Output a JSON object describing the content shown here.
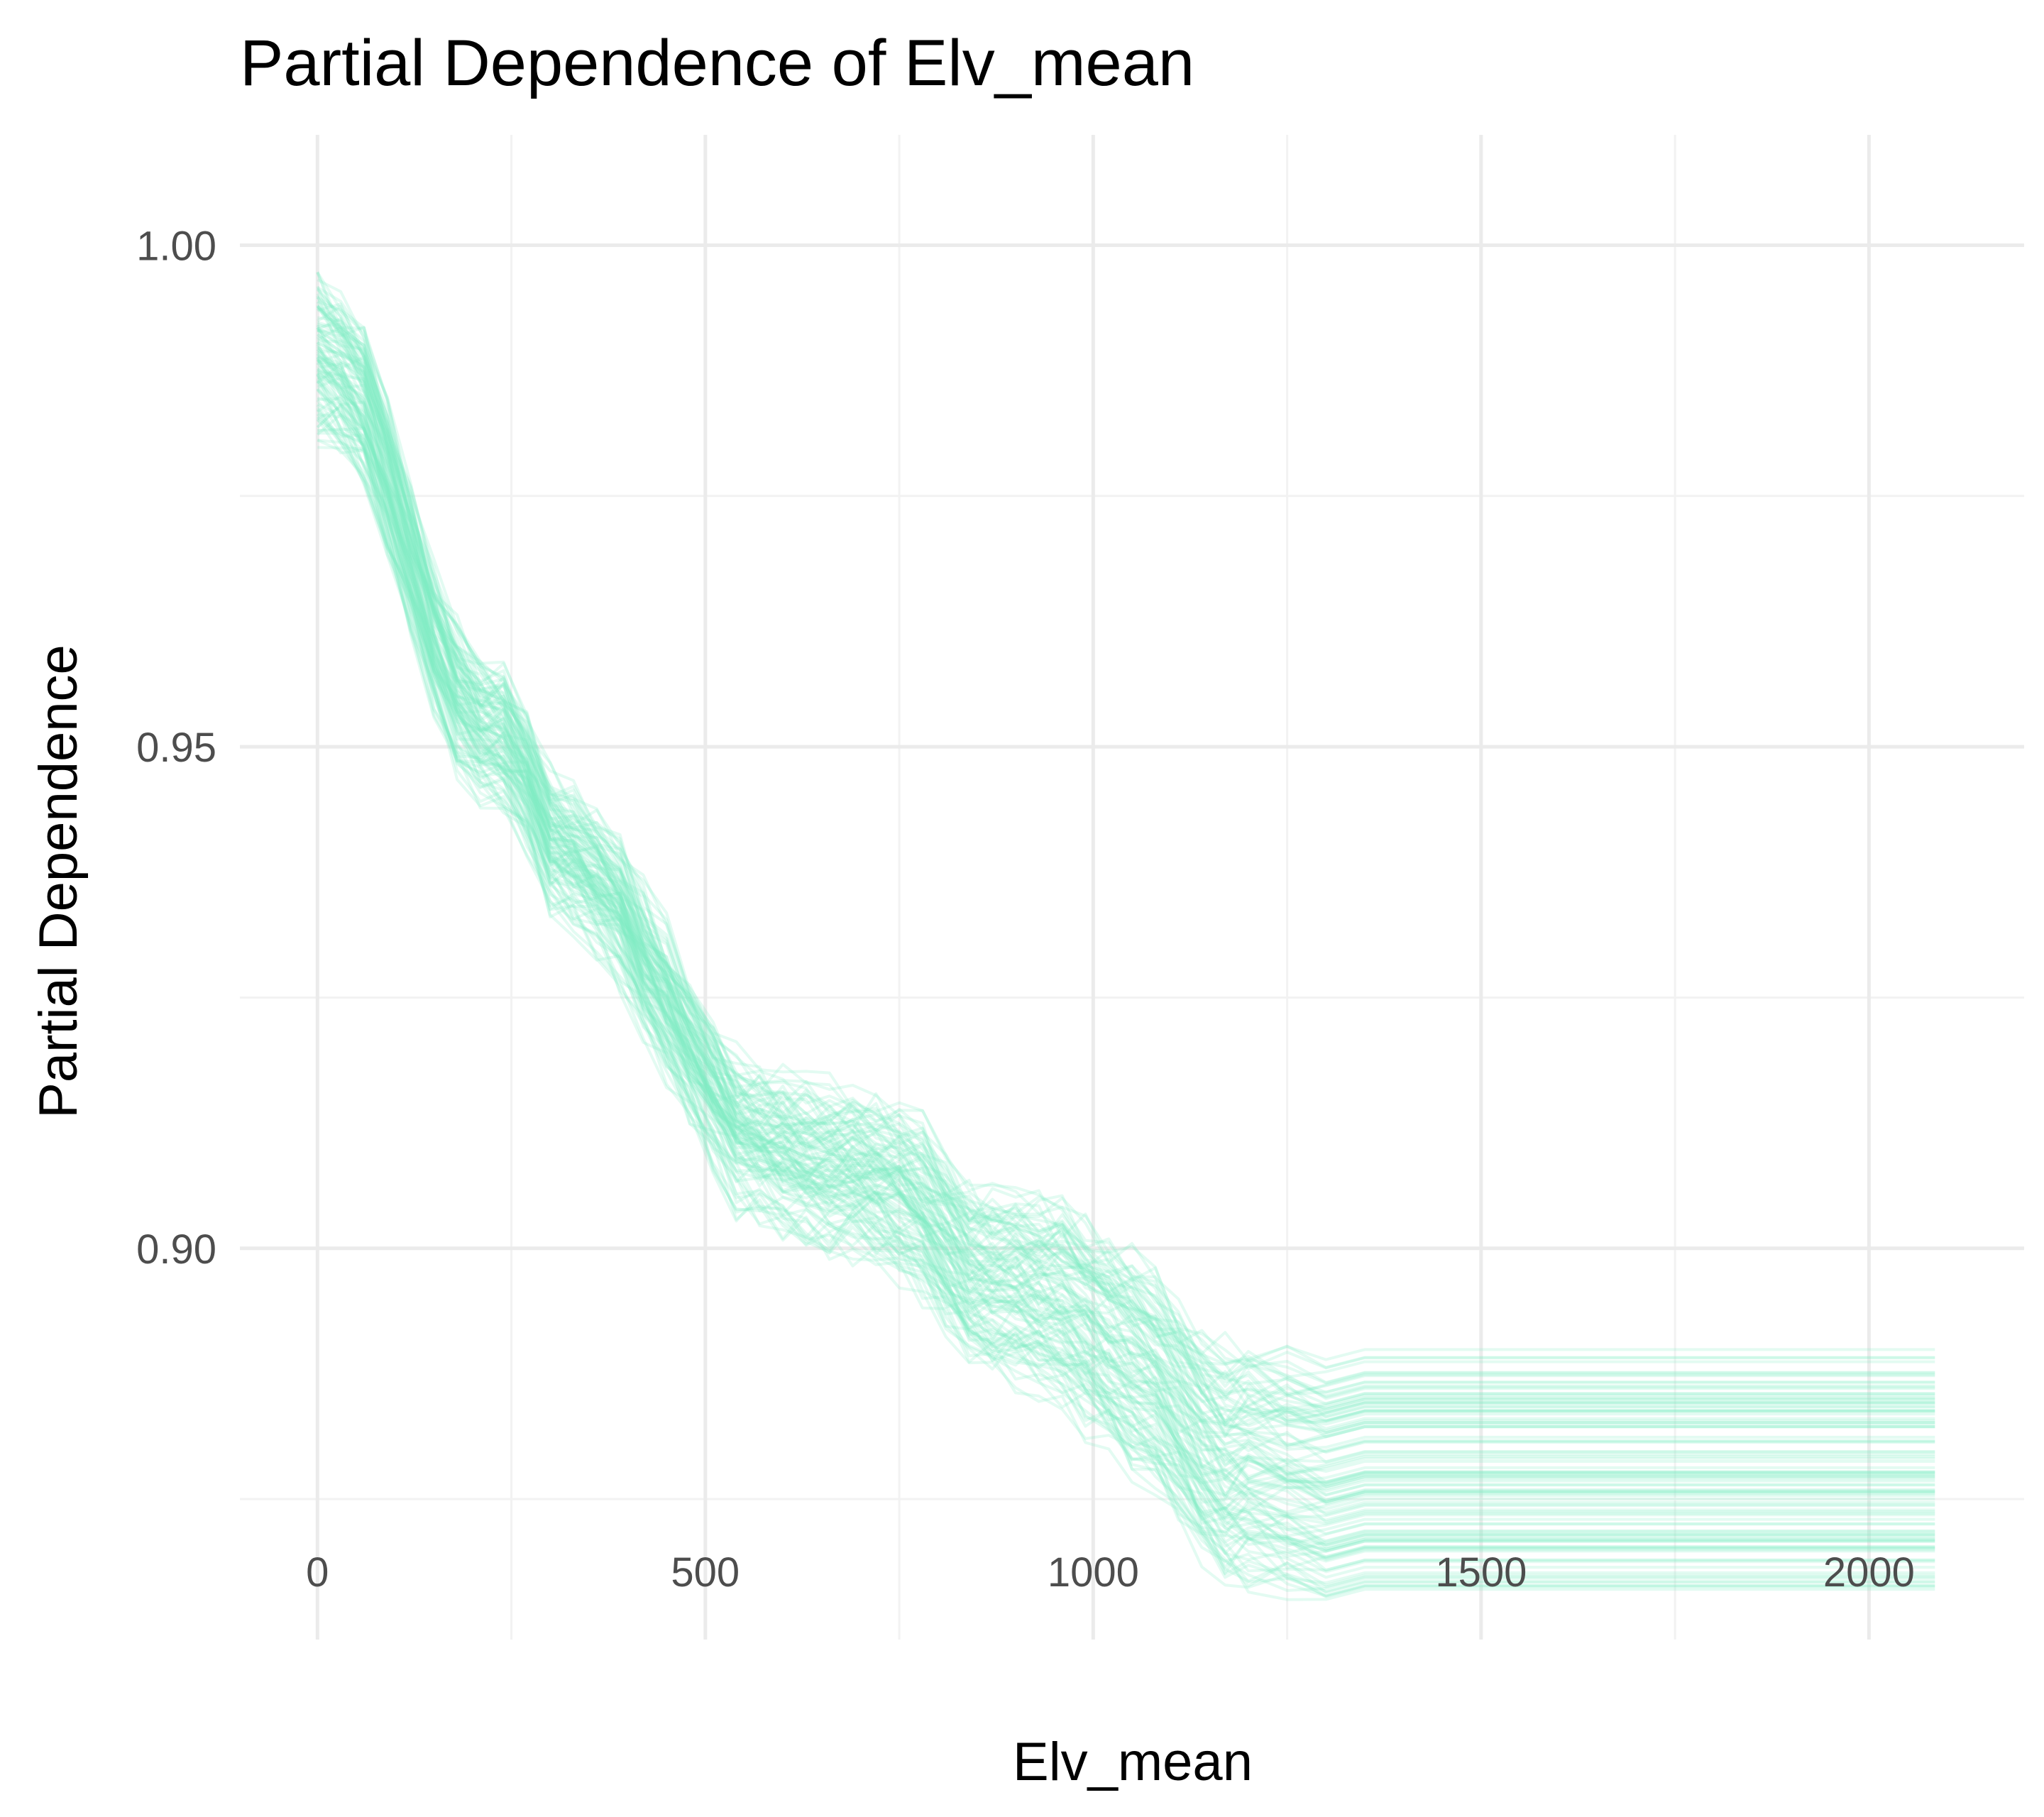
{
  "colors": {
    "background": "#ffffff",
    "grid_major": "#ebebeb",
    "grid_minor": "#f2f2f2",
    "line": "#7fefc6",
    "title_text": "#000000",
    "tick_text": "#4d4d4d"
  },
  "chart_data": {
    "type": "line",
    "title": "Partial Dependence of Elv_mean",
    "xlabel": "Elv_mean",
    "ylabel": "Partial Dependence",
    "xlim": [
      -100,
      2200
    ],
    "ylim": [
      0.861,
      1.011
    ],
    "x_ticks": [
      0,
      500,
      1000,
      1500,
      2000
    ],
    "x_tick_labels": [
      "0",
      "500",
      "1000",
      "1500",
      "2000"
    ],
    "y_ticks": [
      0.9,
      0.95,
      1.0
    ],
    "y_tick_labels": [
      "0.90",
      "0.95",
      "1.00"
    ],
    "minor_grid_x": [
      250,
      750,
      1250,
      1750
    ],
    "minor_grid_y": [
      0.875,
      0.925,
      0.975
    ],
    "grid": true,
    "legend": "none",
    "line_opacity": 0.22,
    "series_count": 110,
    "series_spread_range": [
      -0.012,
      0.012
    ],
    "x": [
      0,
      30,
      60,
      90,
      120,
      150,
      180,
      210,
      240,
      270,
      300,
      330,
      360,
      390,
      420,
      450,
      480,
      510,
      540,
      570,
      600,
      630,
      660,
      690,
      720,
      750,
      780,
      810,
      840,
      870,
      900,
      930,
      960,
      990,
      1020,
      1050,
      1080,
      1110,
      1140,
      1170,
      1200,
      1250,
      1300,
      1350,
      1400,
      1500,
      1600,
      1700,
      1800,
      1900,
      2000,
      2085
    ],
    "center_values": [
      0.989,
      0.987,
      0.984,
      0.977,
      0.969,
      0.961,
      0.955,
      0.952,
      0.951,
      0.947,
      0.941,
      0.939,
      0.937,
      0.934,
      0.929,
      0.925,
      0.92,
      0.916,
      0.912,
      0.911,
      0.91,
      0.909,
      0.908,
      0.908,
      0.907,
      0.906,
      0.904,
      0.901,
      0.898,
      0.897,
      0.897,
      0.896,
      0.895,
      0.893,
      0.891,
      0.889,
      0.887,
      0.884,
      0.881,
      0.879,
      0.879,
      0.878,
      0.877,
      0.878,
      0.878,
      0.878,
      0.878,
      0.878,
      0.878,
      0.878,
      0.878,
      0.878
    ]
  }
}
